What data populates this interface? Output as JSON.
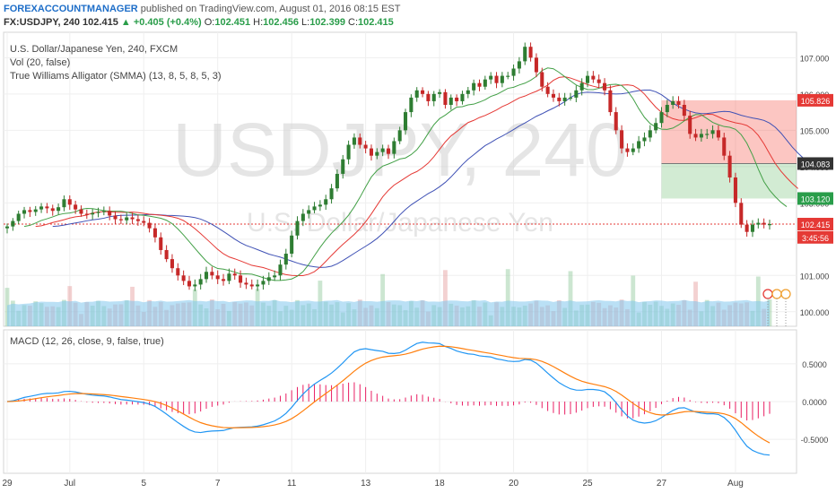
{
  "header": {
    "author": "FOREXACCOUNTMANAGER",
    "published": "published on TradingView.com, August 01, 2016 08:15 EST",
    "symbol": "FX:USDJPY, 240",
    "last": "102.415",
    "change": "▲ +0.405 (+0.4%)",
    "o_label": "O:",
    "o": "102.451",
    "h_label": "H:",
    "h": "102.456",
    "l_label": "L:",
    "l": "102.399",
    "c_label": "C:",
    "c": "102.415"
  },
  "legend": {
    "line1": "U.S. Dollar/Japanese Yen, 240, FXCM",
    "line2": "Vol (20, false)",
    "line3": "True Williams Alligator (SMMA) (13, 8, 5, 8, 5, 3)",
    "macd": "MACD (12, 26, close, 9, false, true)"
  },
  "watermark": {
    "big": "USDJPY, 240",
    "small": "U.S. Dollar/Japanese Yen"
  },
  "colors": {
    "up": "#2e7d32",
    "down": "#c62828",
    "jaw": "#3f51b5",
    "teeth": "#e53935",
    "lips": "#43a047",
    "volume_area": "#81c7ec",
    "macd_line": "#2196f3",
    "signal_line": "#ff7f0e",
    "hist": "#e91e63"
  },
  "chart_data": [
    {
      "type": "candlestick",
      "title": "U.S. Dollar/Japanese Yen, 240, FXCM",
      "y_ticks": [
        100.0,
        101.0,
        102.0,
        103.0,
        104.0,
        105.0,
        106.0,
        107.0
      ],
      "y_tick_labels": [
        "100.000",
        "101.000",
        "102.000",
        "103.000",
        "104.000",
        "105.000",
        "106.000",
        "107.000"
      ],
      "x_labels": [
        "29",
        "Jul",
        "5",
        "7",
        "11",
        "13",
        "18",
        "20",
        "25",
        "27",
        "Aug"
      ],
      "x_label_index": [
        0,
        11,
        24,
        37,
        50,
        63,
        76,
        89,
        102,
        115,
        128
      ],
      "ylim": [
        99.6,
        107.7
      ],
      "price_tags": [
        {
          "label": "105.826",
          "value": 105.826,
          "color": "#e53935"
        },
        {
          "label": "104.083",
          "value": 104.083,
          "color": "#333333"
        },
        {
          "label": "103.120",
          "value": 103.12,
          "color": "#2a9d4a"
        },
        {
          "label": "102.415",
          "value": 102.415,
          "color": "#e53935"
        },
        {
          "label": "3:45:56",
          "value": 102.05,
          "color": "#e53935"
        }
      ],
      "position": {
        "entry": 104.083,
        "stop": 105.826,
        "target": 103.12
      },
      "close": [
        102.35,
        102.5,
        102.7,
        102.8,
        102.75,
        102.82,
        102.9,
        102.85,
        102.78,
        102.88,
        103.1,
        102.95,
        102.82,
        102.7,
        102.68,
        102.72,
        102.75,
        102.78,
        102.65,
        102.55,
        102.52,
        102.6,
        102.55,
        102.5,
        102.45,
        102.3,
        102.05,
        101.7,
        101.45,
        101.2,
        101.0,
        100.85,
        100.7,
        100.75,
        100.9,
        101.1,
        101.0,
        100.9,
        100.85,
        101.05,
        101.0,
        100.8,
        100.75,
        100.7,
        100.75,
        100.85,
        100.95,
        101.0,
        101.3,
        101.6,
        102.1,
        102.5,
        102.7,
        102.8,
        102.9,
        102.95,
        103.1,
        103.4,
        103.8,
        104.2,
        104.6,
        104.8,
        104.6,
        104.5,
        104.3,
        104.4,
        104.5,
        104.35,
        104.7,
        105.0,
        105.5,
        105.9,
        106.1,
        106.0,
        105.8,
        106.0,
        106.05,
        105.7,
        105.9,
        105.8,
        106.0,
        106.1,
        106.3,
        106.2,
        106.4,
        106.5,
        106.3,
        106.5,
        106.5,
        106.7,
        106.9,
        107.3,
        107.0,
        106.6,
        106.2,
        106.0,
        105.9,
        105.8,
        105.9,
        105.9,
        106.1,
        106.3,
        106.5,
        106.4,
        106.3,
        106.1,
        105.5,
        105.0,
        104.5,
        104.4,
        104.5,
        104.7,
        104.8,
        105.0,
        105.2,
        105.5,
        105.7,
        105.8,
        105.7,
        105.4,
        104.9,
        104.8,
        104.9,
        104.9,
        105.0,
        104.8,
        104.3,
        103.7,
        103.0,
        102.4,
        102.2,
        102.4,
        102.45,
        102.4,
        102.415
      ]
    },
    {
      "type": "area",
      "title": "Vol (20, false)",
      "note": "volume bars and 20-period moving average in the lower part of the price pane"
    },
    {
      "type": "line",
      "title": "MACD (12, 26, close, 9, false, true)",
      "y_ticks": [
        0.5,
        0.0,
        -0.5
      ],
      "y_tick_labels": [
        "0.5000",
        "0.0000",
        "-0.5000"
      ],
      "ylim": [
        -0.95,
        0.95
      ],
      "series": [
        {
          "name": "MACD",
          "color": "#2196f3"
        },
        {
          "name": "Signal",
          "color": "#ff7f0e"
        },
        {
          "name": "Histogram",
          "color": "#e91e63"
        }
      ]
    }
  ]
}
